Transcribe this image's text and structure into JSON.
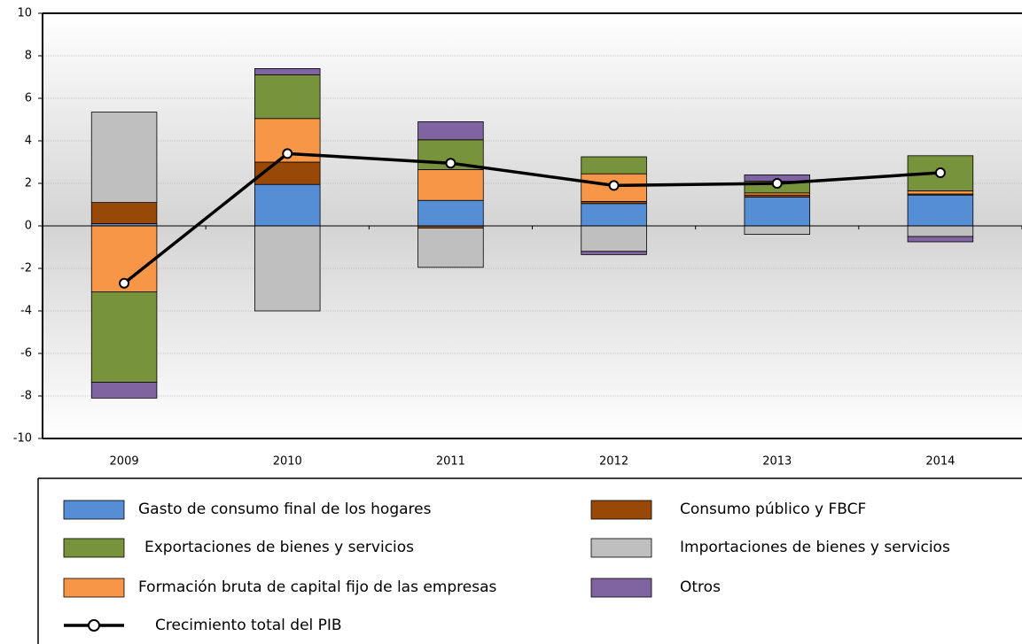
{
  "chart_data": {
    "type": "bar",
    "stacked": true,
    "categories": [
      "2009",
      "2010",
      "2011",
      "2012",
      "2013",
      "2014"
    ],
    "series": [
      {
        "name": "Gasto de consumo final de los hogares",
        "color": "#558ed5",
        "values": [
          0.1,
          1.95,
          1.2,
          1.05,
          1.35,
          1.45
        ]
      },
      {
        "name": "Consumo público y FBCF",
        "color": "#984807",
        "values": [
          1.0,
          1.05,
          -0.1,
          0.1,
          0.1,
          0.05
        ]
      },
      {
        "name": "Formación bruta de capital fijo de las empresas",
        "color": "#f79646",
        "values": [
          -3.1,
          2.05,
          1.45,
          1.3,
          0.1,
          0.15
        ]
      },
      {
        "name": "Exportaciones de bienes y servicios",
        "color": "#77933c",
        "values": [
          -4.25,
          2.05,
          1.4,
          0.8,
          0.55,
          1.65
        ]
      },
      {
        "name": "Importaciones de bienes y servicios",
        "color": "#bfbfbf",
        "values": [
          4.25,
          -4.0,
          -1.85,
          -1.2,
          -0.4,
          -0.5
        ]
      },
      {
        "name": "Otros",
        "color": "#8064a2",
        "values": [
          -0.75,
          0.3,
          0.85,
          -0.15,
          0.3,
          -0.25
        ]
      }
    ],
    "line": {
      "name": "Crecimiento total del PIB",
      "color": "#000000",
      "values": [
        -2.7,
        3.4,
        2.95,
        1.9,
        2.0,
        2.5
      ]
    },
    "ylim": [
      -10,
      10
    ],
    "yticks": [
      -10,
      -8,
      -6,
      -4,
      -2,
      0,
      2,
      4,
      6,
      8,
      10
    ],
    "grid": true
  }
}
